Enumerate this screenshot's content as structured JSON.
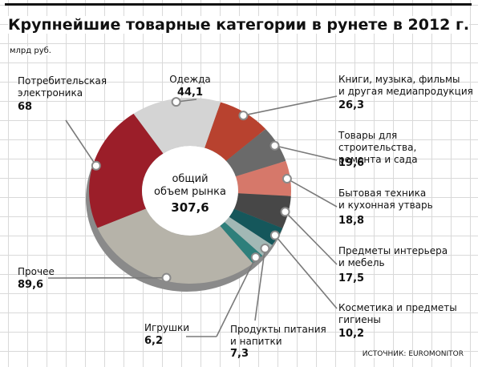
{
  "chart_data": {
    "type": "donut",
    "title": "Крупнейшие товарные категории в рунете в 2012 г.",
    "subtitle": "млрд руб.",
    "center_label": "общий\nобъем рынка",
    "total": 307.6,
    "total_label": "307,6",
    "source": "ИСТОЧНИК: EUROMONITOR",
    "categories": [
      "Одежда",
      "Книги, музыка, фильмы\nи другая медиапродукция",
      "Товары для строительства,\nремонта и сада",
      "Бытовая техника\nи кухонная утварь",
      "Предметы интерьера\nи мебель",
      "Косметика и предметы\nгигиены",
      "Продукты питания\nи напитки",
      "Игрушки",
      "Прочее",
      "Потребительская\nэлектроника"
    ],
    "values": [
      44.1,
      26.3,
      19.6,
      18.8,
      17.5,
      10.2,
      7.3,
      6.2,
      89.6,
      68
    ],
    "value_labels": [
      "44,1",
      "26,3",
      "19,6",
      "18,8",
      "17,5",
      "10,2",
      "7,3",
      "6,2",
      "89,6",
      "68"
    ],
    "colors": [
      "#d4d4d4",
      "#b8422f",
      "#6a6a6a",
      "#d6786a",
      "#474747",
      "#15575b",
      "#a2b8b5",
      "#2e7f7b",
      "#b6b3a9",
      "#9b1e29"
    ]
  }
}
